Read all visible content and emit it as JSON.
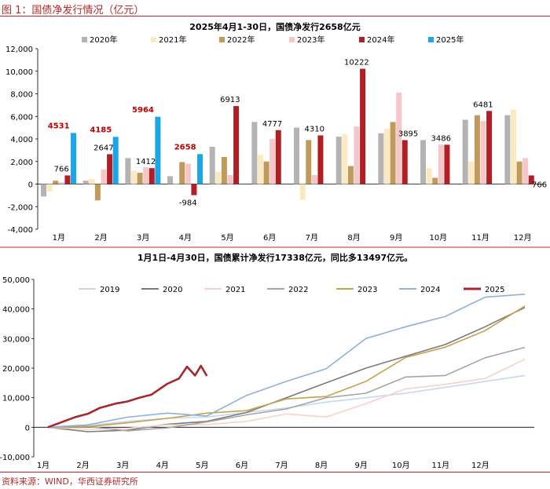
{
  "figure": {
    "title": "图 1：国债净发行情况（亿元）",
    "source": "资料来源：WIND，华西证券研究所"
  },
  "colors": {
    "2019": "#c5d8ec",
    "2020": "#b3b3b3",
    "2021": "#fbe9c1",
    "2022": "#bf9a5a",
    "2023": "#f5c7c9",
    "2024": "#b11f24",
    "2025": "#1aa7e8",
    "line2020": "#7a7a7a",
    "line2021": "#f6d2c8",
    "line2022": "#a5a5a5",
    "line2023": "#c9a04e",
    "line2024": "#8fb1da",
    "line2025": "#a4282c",
    "highlight": "#c00000",
    "frame": "#b52a2a"
  },
  "chart_data": [
    {
      "type": "bar",
      "title": "2025年4月1-30日，国债净发行2658亿元",
      "categories": [
        "1月",
        "2月",
        "3月",
        "4月",
        "5月",
        "6月",
        "7月",
        "8月",
        "9月",
        "10月",
        "11月",
        "12月"
      ],
      "series": [
        {
          "name": "2020年",
          "values": [
            -1100,
            300,
            2300,
            700,
            3300,
            5500,
            5000,
            4200,
            4500,
            3900,
            5700,
            6100
          ]
        },
        {
          "name": "2021年",
          "values": [
            -650,
            450,
            1200,
            0,
            1100,
            2600,
            -1400,
            4400,
            4900,
            1400,
            2000,
            6600
          ]
        },
        {
          "name": "2022年",
          "values": [
            300,
            -1450,
            1000,
            1950,
            2400,
            2000,
            3900,
            1600,
            5500,
            550,
            6100,
            2000
          ]
        },
        {
          "name": "2023年",
          "values": [
            150,
            1300,
            1500,
            1800,
            800,
            4000,
            800,
            5100,
            8100,
            3500,
            5600,
            2300
          ]
        },
        {
          "name": "2024年",
          "values": [
            766,
            2647,
            1412,
            -984,
            6913,
            4777,
            4310,
            10222,
            3895,
            3486,
            6481,
            766
          ]
        },
        {
          "name": "2025年",
          "values": [
            4531,
            4185,
            5964,
            2658,
            null,
            null,
            null,
            null,
            null,
            null,
            null,
            null
          ]
        }
      ],
      "data_labels_2024": [
        "766",
        "2647",
        "1412",
        "-984",
        "6913",
        "4777",
        "4310",
        "10222",
        "3895",
        "3486",
        "6481",
        "766"
      ],
      "data_labels_2025": [
        "4531",
        "4185",
        "5964",
        "2658"
      ],
      "yticks": [
        "12,000",
        "10,000",
        "8,000",
        "6,000",
        "4,000",
        "2,000",
        "0",
        "-2,000",
        "-4,000"
      ],
      "ylim": [
        -4000,
        12000
      ],
      "legend": "top",
      "grid": false
    },
    {
      "type": "line",
      "title": "1月1日-4月30日，国债累计净发行17338亿元，同比多13497亿元。",
      "xticks": [
        "1月",
        "2月",
        "3月",
        "4月",
        "5月",
        "6月",
        "7月",
        "8月",
        "9月",
        "10月",
        "11月",
        "12月"
      ],
      "yticks": [
        "50,000",
        "40,000",
        "30,000",
        "20,000",
        "10,000",
        "0",
        "-10,000"
      ],
      "ylim": [
        -10000,
        50000
      ],
      "legend": "top",
      "grid": false,
      "series": [
        {
          "name": "2019",
          "x": [
            0,
            1,
            2,
            3,
            4,
            5,
            6,
            7,
            8,
            9,
            10,
            11,
            12
          ],
          "y": [
            0,
            500,
            2000,
            3000,
            3500,
            5000,
            6500,
            8500,
            10000,
            11500,
            13500,
            15500,
            17500
          ]
        },
        {
          "name": "2020",
          "x": [
            0,
            1,
            2,
            3,
            4,
            5,
            6,
            7,
            8,
            9,
            10,
            11,
            12
          ],
          "y": [
            0,
            -1500,
            -1000,
            1000,
            2000,
            5000,
            10000,
            15000,
            20000,
            24000,
            28000,
            34000,
            40500
          ]
        },
        {
          "name": "2021",
          "x": [
            0,
            1,
            2,
            3,
            4,
            5,
            6,
            7,
            8,
            9,
            10,
            11,
            12
          ],
          "y": [
            0,
            -700,
            -300,
            800,
            900,
            2000,
            4500,
            3500,
            8000,
            13000,
            14500,
            16500,
            23000
          ]
        },
        {
          "name": "2022",
          "x": [
            0,
            1,
            2,
            3,
            4,
            5,
            6,
            7,
            8,
            9,
            10,
            11,
            12
          ],
          "y": [
            0,
            300,
            -1200,
            -200,
            1800,
            4200,
            6200,
            10000,
            11500,
            17000,
            17500,
            23500,
            27000
          ]
        },
        {
          "name": "2023",
          "x": [
            0,
            1,
            2,
            3,
            4,
            5,
            6,
            7,
            8,
            9,
            10,
            11,
            12
          ],
          "y": [
            0,
            200,
            1500,
            3000,
            4800,
            5600,
            9600,
            10400,
            15500,
            23600,
            27100,
            32700,
            41000
          ]
        },
        {
          "name": "2024",
          "x": [
            0,
            1,
            2,
            3,
            4,
            5,
            6,
            7,
            8,
            9,
            10,
            11,
            12
          ],
          "y": [
            0,
            800,
            3400,
            4800,
            3800,
            10800,
            15500,
            19800,
            30000,
            34000,
            37500,
            44000,
            45000
          ]
        },
        {
          "name": "2025",
          "x": [
            0,
            0.3,
            0.7,
            1,
            1.3,
            1.7,
            2,
            2.3,
            2.6,
            3,
            3.3,
            3.5,
            3.7,
            3.85,
            4
          ],
          "y": [
            0,
            1500,
            3500,
            4531,
            6500,
            8000,
            8716,
            10000,
            11000,
            14680,
            16500,
            20500,
            17500,
            20800,
            17338
          ]
        }
      ]
    }
  ]
}
